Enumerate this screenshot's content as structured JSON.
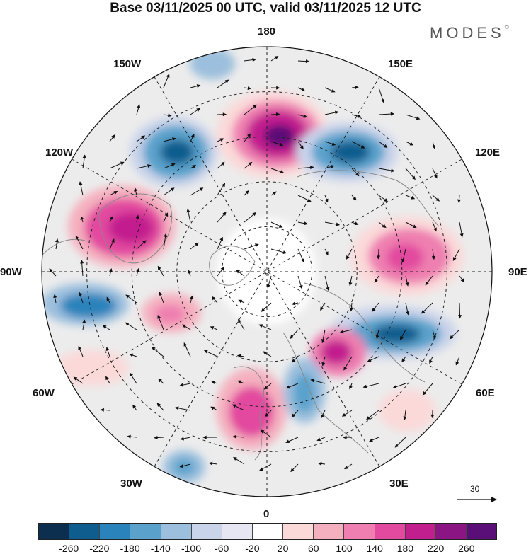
{
  "title": "Base 03/11/2025 00 UTC, valid 03/11/2025 12 UTC",
  "brand": "MODES",
  "brand_mark": "©",
  "longitude_labels": {
    "top": "180",
    "top_left": "150W",
    "top_right": "150E",
    "upper_left": "120W",
    "upper_right": "120E",
    "left": "90W",
    "right": "90E",
    "lower_left": "60W",
    "lower_right": "60E",
    "bottom_left": "30W",
    "bottom_right": "30E",
    "bottom": "0"
  },
  "vector_scale_label": "30",
  "colorbar": {
    "colors": [
      "#0d2f4f",
      "#0f5d8e",
      "#2b83bb",
      "#5aa2cc",
      "#9bbfdd",
      "#c9d3ea",
      "#e6e6f2",
      "#ffffff",
      "#fbd9d9",
      "#f5b0bf",
      "#ee7fb0",
      "#e24a9f",
      "#c21f8e",
      "#8c1584",
      "#5a0f78"
    ],
    "ticks": [
      "-260",
      "-220",
      "-180",
      "-140",
      "-100",
      "-60",
      "-20",
      "20",
      "60",
      "100",
      "140",
      "180",
      "220",
      "260"
    ]
  }
}
